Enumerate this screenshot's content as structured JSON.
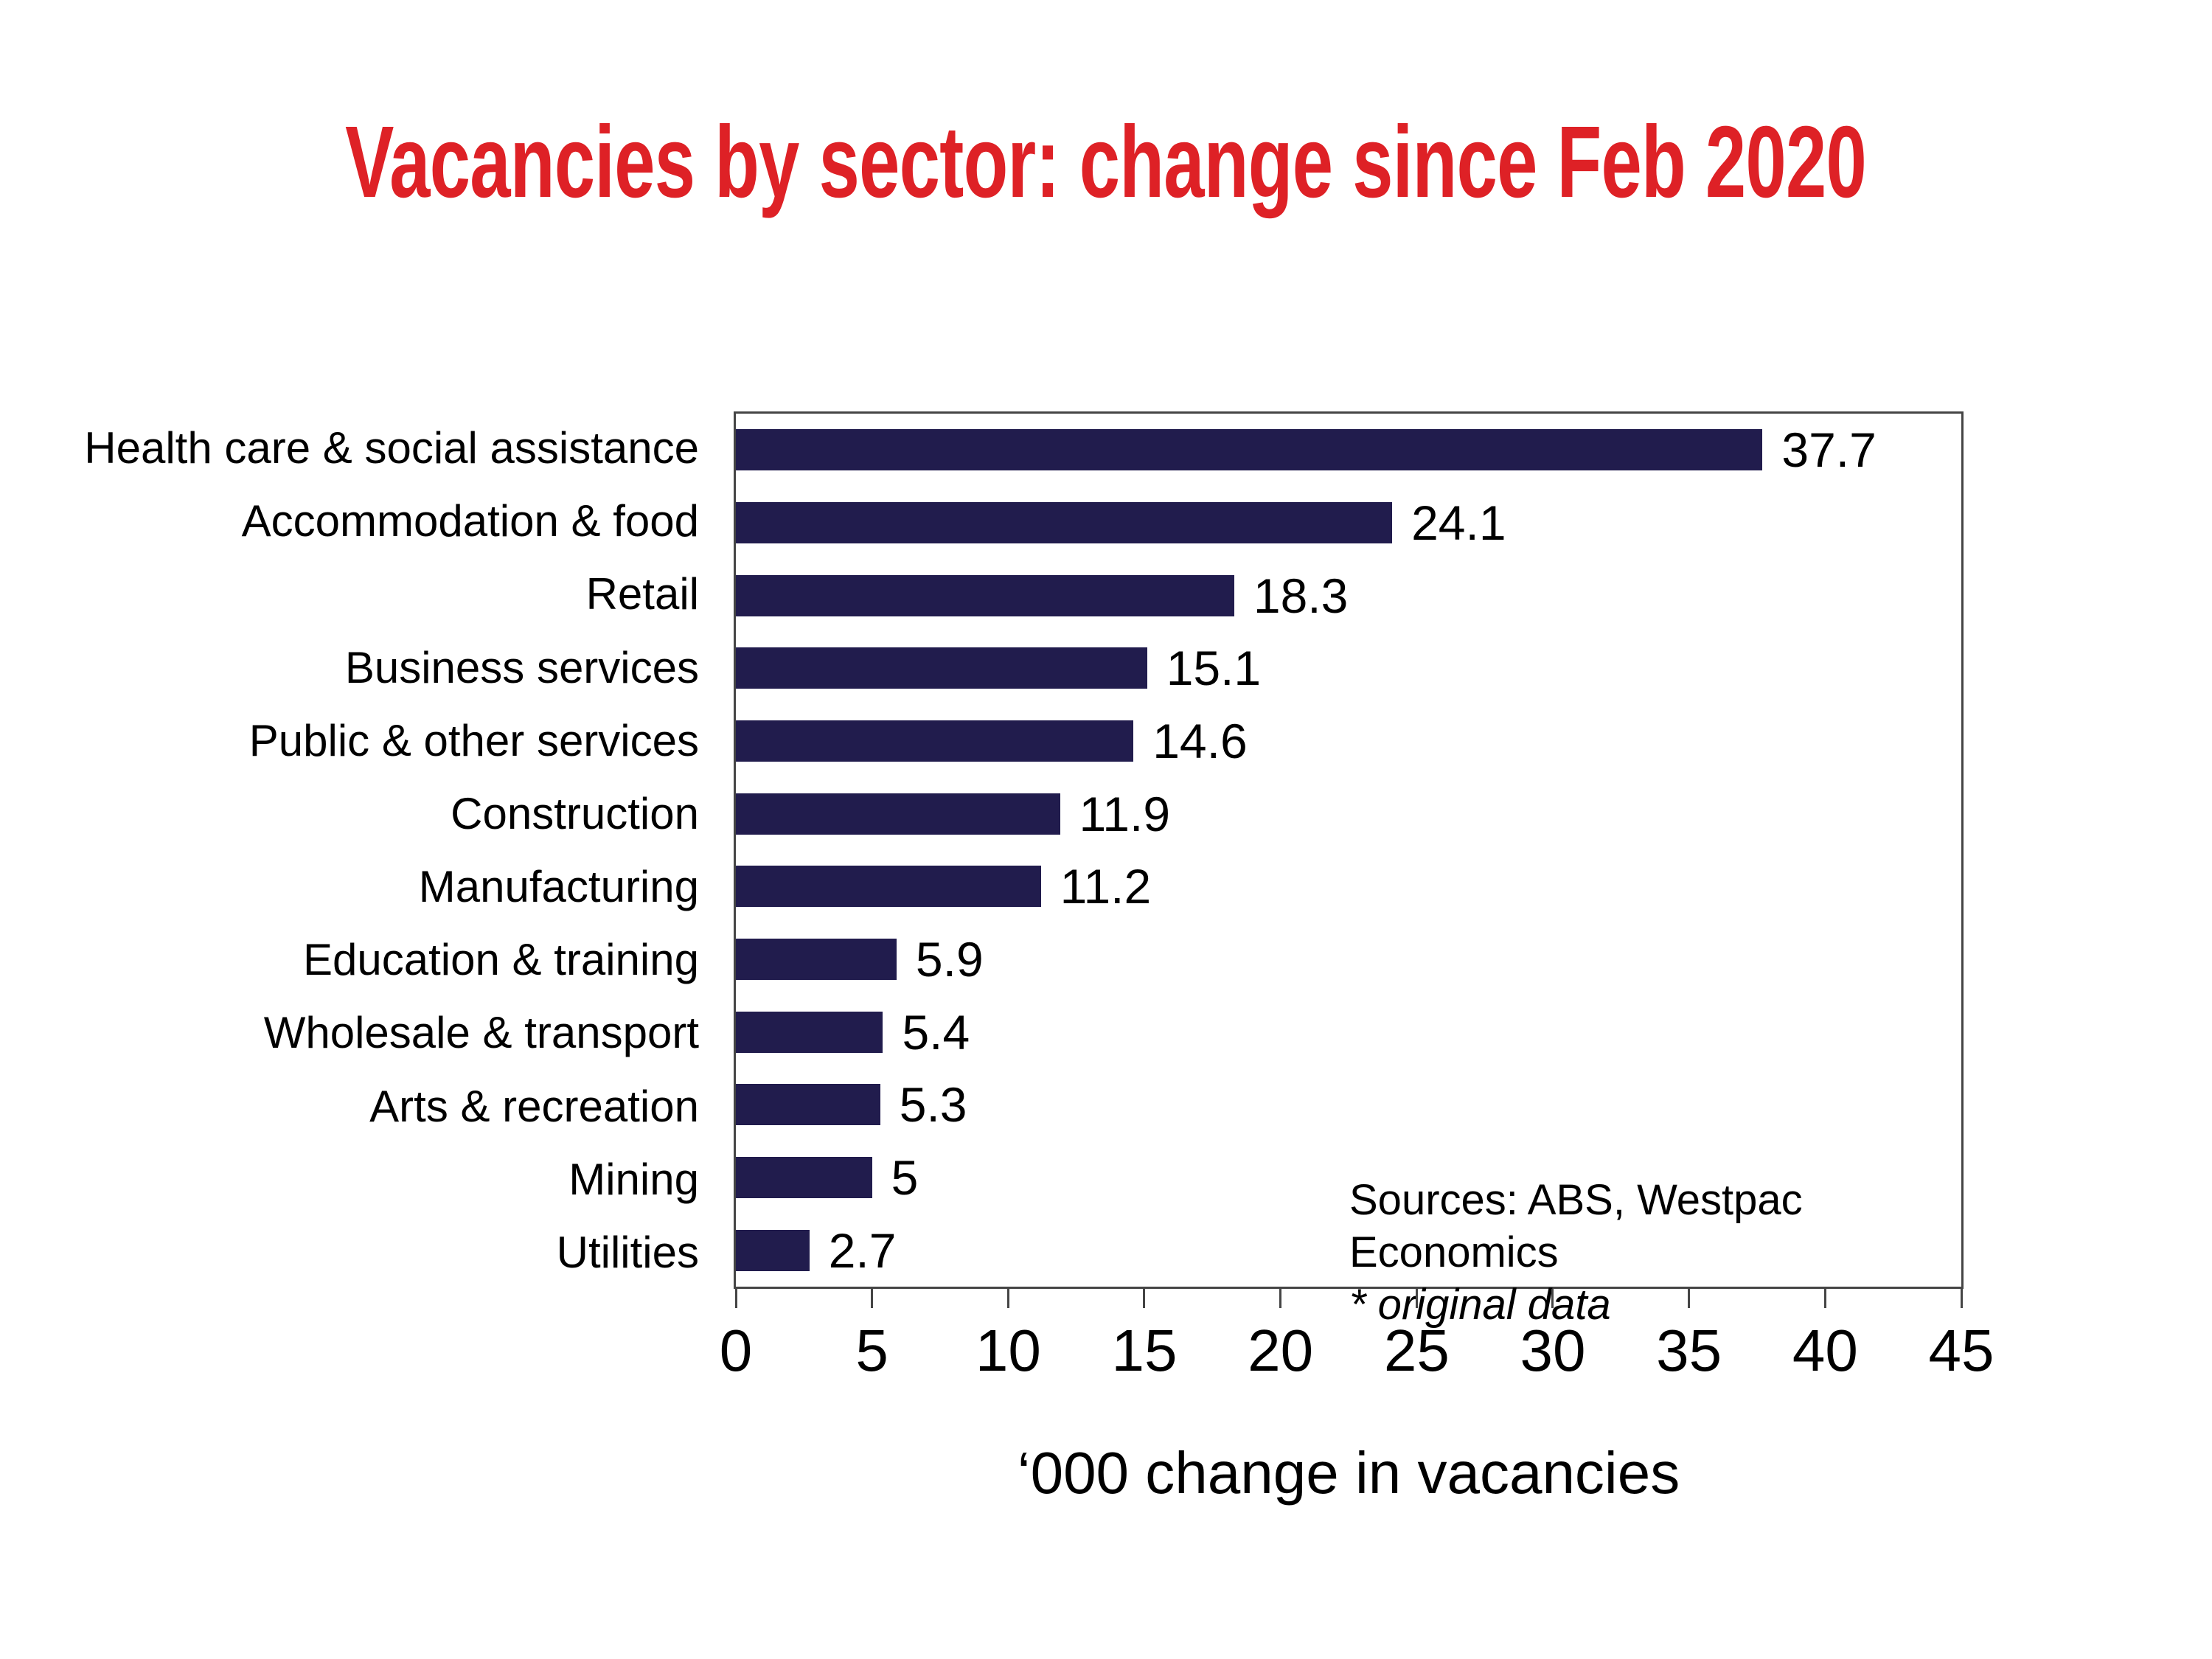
{
  "title": {
    "text": "Vacancies by sector: change since Feb 2020",
    "color": "#de2126"
  },
  "chart_data": {
    "type": "bar",
    "orientation": "horizontal",
    "title": "Vacancies by sector: change since Feb 2020",
    "categories": [
      "Health care & social assistance",
      "Accommodation & food",
      "Retail",
      "Business services",
      "Public & other services",
      "Construction",
      "Manufacturing",
      "Education & training",
      "Wholesale & transport",
      "Arts & recreation",
      "Mining",
      "Utilities"
    ],
    "values": [
      37.7,
      24.1,
      18.3,
      15.1,
      14.6,
      11.9,
      11.2,
      5.9,
      5.4,
      5.3,
      5,
      2.7
    ],
    "value_labels": [
      "37.7",
      "24.1",
      "18.3",
      "15.1",
      "14.6",
      "11.9",
      "11.2",
      "5.9",
      "5.4",
      "5.3",
      "5",
      "2.7"
    ],
    "xlabel": "‘000 change in vacancies",
    "xlim": [
      0,
      45
    ],
    "xticks": [
      0,
      5,
      10,
      15,
      20,
      25,
      30,
      35,
      40,
      45
    ],
    "bar_color": "#211c4d",
    "axis_color": "#454545",
    "grid": false,
    "legend": false
  },
  "annotations": {
    "sources_line1": "Sources: ABS, Westpac Economics",
    "sources_line2": "* original data"
  }
}
